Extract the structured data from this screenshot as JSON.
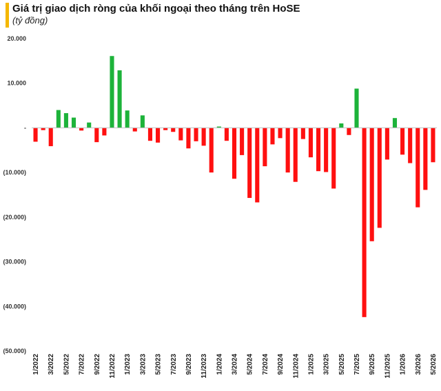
{
  "header": {
    "title": "Giá trị giao dịch ròng của khối ngoại theo tháng trên HoSE",
    "subtitle": "(tỷ đồng)"
  },
  "colors": {
    "positive": "#1db33a",
    "negative": "#ff1010",
    "accent": "#f5b800"
  },
  "chart_data": {
    "type": "bar",
    "title": "Giá trị giao dịch ròng của khối ngoại theo tháng trên HoSE",
    "subtitle": "(tỷ đồng)",
    "ylim": [
      -50000,
      20000
    ],
    "yticks": [
      20000,
      10000,
      0,
      -10000,
      -20000,
      -30000,
      -40000,
      -50000
    ],
    "ytick_labels": [
      "20.000",
      "10.000",
      "-",
      "(10.000)",
      "(20.000)",
      "(30.000)",
      "(40.000)",
      "(50.000)"
    ],
    "grid": false,
    "categories": [
      "1/2022",
      "2/2022",
      "3/2022",
      "4/2022",
      "5/2022",
      "6/2022",
      "7/2022",
      "8/2022",
      "9/2022",
      "10/2022",
      "11/2022",
      "12/2022",
      "1/2023",
      "2/2023",
      "3/2023",
      "4/2023",
      "5/2023",
      "6/2023",
      "7/2023",
      "8/2023",
      "9/2023",
      "10/2023",
      "11/2023",
      "12/2023",
      "1/2024",
      "2/2024",
      "3/2024",
      "4/2024",
      "5/2024",
      "6/2024",
      "7/2024",
      "8/2024",
      "9/2024",
      "10/2024",
      "11/2024",
      "12/2024",
      "1/2025",
      "2/2025",
      "3/2025",
      "4/2025",
      "5/2025",
      "6/2025",
      "7/2025",
      "8/2025",
      "9/2025",
      "10/2025",
      "11/2025",
      "12/2025",
      "1/2026",
      "2/2026",
      "3/2026",
      "4/2026",
      "5/2026"
    ],
    "xtick_labels": [
      "1/2022",
      "3/2022",
      "5/2022",
      "7/2022",
      "9/2022",
      "11/2022",
      "1/2023",
      "3/2023",
      "5/2023",
      "7/2023",
      "9/2023",
      "11/2023",
      "1/2024",
      "3/2024",
      "5/2024",
      "7/2024",
      "9/2024",
      "11/2024",
      "1/2025",
      "3/2025",
      "5/2025",
      "7/2025",
      "9/2025",
      "11/2025",
      "1/2026",
      "3/2026",
      "5/2026"
    ],
    "values": [
      -3100,
      -500,
      -4100,
      4000,
      3300,
      2300,
      -600,
      1200,
      -3200,
      -1700,
      16100,
      12900,
      3900,
      -800,
      2800,
      -2900,
      -3300,
      -500,
      -900,
      -2800,
      -4600,
      -3000,
      -4000,
      -10000,
      300,
      -2900,
      -11400,
      -6100,
      -15700,
      -16700,
      -8600,
      -3700,
      -2300,
      -10000,
      -12100,
      -2500,
      -6600,
      -9700,
      -9900,
      -13600,
      1000,
      -1600,
      8800,
      -42400,
      -25400,
      -22400,
      -7100,
      2200,
      -6000,
      -7900,
      -17800,
      -13900,
      -7700
    ]
  }
}
